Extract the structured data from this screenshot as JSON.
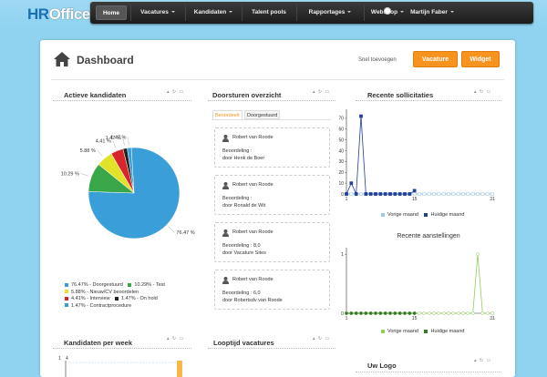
{
  "app": {
    "logo_hr": "HR",
    "logo_office": "Office"
  },
  "nav": {
    "items": [
      {
        "label": "Home",
        "active": true,
        "dropdown": false
      },
      {
        "label": "Vacatures",
        "active": false,
        "dropdown": true
      },
      {
        "label": "Kandidaten",
        "active": false,
        "dropdown": true
      },
      {
        "label": "Talent pools",
        "active": false,
        "dropdown": false
      },
      {
        "label": "Rapportages",
        "active": false,
        "dropdown": true
      },
      {
        "label": "Webshop",
        "active": false,
        "dropdown": true
      }
    ],
    "user": "Martijn Faber"
  },
  "header": {
    "title": "Dashboard",
    "quick_add_label": "Snel toevoegen",
    "buttons": [
      "Vacature",
      "Widget"
    ]
  },
  "widgets": {
    "actieve": {
      "title": "Actieve kandidaten",
      "legend": [
        {
          "label": "76.47% - Doorgestuurd",
          "color": "#3a9fd8"
        },
        {
          "label": "10.29% - Test",
          "color": "#3aa64a"
        },
        {
          "label": "5.88% - Nieuw/CV beoordelen",
          "color": "#e3e22a"
        },
        {
          "label": "4.41% - Interview",
          "color": "#d8252b"
        },
        {
          "label": "1.47% - On hold",
          "color": "#222222"
        },
        {
          "label": "1.47% - Contractprocedure",
          "color": "#3a9fd8"
        }
      ]
    },
    "doorsturen": {
      "title": "Doorsturen overzicht",
      "tabs": [
        "Beoordeelt",
        "Doorgestuurd"
      ],
      "cards": [
        {
          "name": "Robert van Roode",
          "line1": "Beoordeling :",
          "line2": "door Henk de Boer"
        },
        {
          "name": "Robert van Roode",
          "line1": "Beoordeling :",
          "line2": "door Ronald de Wit"
        },
        {
          "name": "Robert van Roode",
          "line1": "Beoordeling : 8,0",
          "line2": "door Vacature Sites"
        },
        {
          "name": "Robert van Roode",
          "line1": "Beoordeling : 6,0",
          "line2": "door Robertsdv van Roode"
        }
      ]
    },
    "recente_sollicitaties": {
      "title": "Recente sollicitaties",
      "legend": [
        "Vorige maand",
        "Huidige maand"
      ]
    },
    "recente_aanstellingen": {
      "title": "Recente aanstellingen",
      "legend": [
        "Vorige maand",
        "Huidige maand"
      ]
    },
    "kandidaten_per_week": {
      "title": "Kandidaten per week"
    },
    "looptijd": {
      "title": "Looptijd vacatures"
    },
    "uw_logo": {
      "title": "Uw Logo"
    }
  },
  "chart_data": [
    {
      "type": "pie",
      "title": "Actieve kandidaten",
      "labels": [
        "Doorgestuurd",
        "Test",
        "Nieuw/CV beoordelen",
        "Interview",
        "On hold",
        "Contractprocedure"
      ],
      "values": [
        76.47,
        10.29,
        5.88,
        4.41,
        1.47,
        1.47
      ],
      "colors": [
        "#3a9fd8",
        "#3aa64a",
        "#e3e22a",
        "#d8252b",
        "#222222",
        "#3a9fd8"
      ],
      "slice_labels": [
        "76.47 %",
        "10.29 %",
        "5.88 %",
        "4.41 %",
        "1.47 %",
        "1.47 %"
      ]
    },
    {
      "type": "line",
      "title": "Recente sollicitaties",
      "yticks": [
        0,
        10,
        20,
        30,
        40,
        50,
        60,
        70
      ],
      "ylim": [
        0,
        75
      ],
      "xticks": [
        1,
        15,
        31
      ],
      "xlim": [
        1,
        31
      ],
      "series": [
        {
          "name": "Vorige maand",
          "color": "#9fc9ec",
          "values": [
            0,
            0,
            0,
            0,
            0,
            0,
            0,
            0,
            0,
            0,
            0,
            0,
            0,
            0,
            0,
            0,
            0,
            0,
            0,
            0,
            0,
            0,
            0,
            0,
            0,
            0,
            0,
            0,
            0,
            0,
            0
          ]
        },
        {
          "name": "Huidige maand",
          "color": "#1f3f9a",
          "values": [
            0,
            10,
            0,
            72,
            0,
            0,
            0,
            0,
            0,
            0,
            0,
            0,
            0,
            0,
            3
          ]
        }
      ]
    },
    {
      "type": "line",
      "title": "Recente aanstellingen",
      "yticks": [
        0,
        1
      ],
      "ylim": [
        0,
        1.05
      ],
      "xticks": [
        1,
        15,
        31
      ],
      "xlim": [
        1,
        31
      ],
      "series": [
        {
          "name": "Vorige maand",
          "color": "#8ccf5a",
          "values": [
            0,
            0,
            0,
            0,
            0,
            0,
            0,
            0,
            0,
            0,
            0,
            0,
            0,
            0,
            0,
            0,
            0,
            0,
            0,
            0,
            0,
            0,
            0,
            0,
            0,
            0,
            0,
            1,
            0,
            0,
            0
          ]
        },
        {
          "name": "Huidige maand",
          "color": "#2e7d1e",
          "values": [
            0,
            0,
            0,
            0,
            0,
            0,
            0,
            0,
            0,
            0,
            0,
            0,
            0,
            0,
            0
          ]
        }
      ]
    }
  ]
}
